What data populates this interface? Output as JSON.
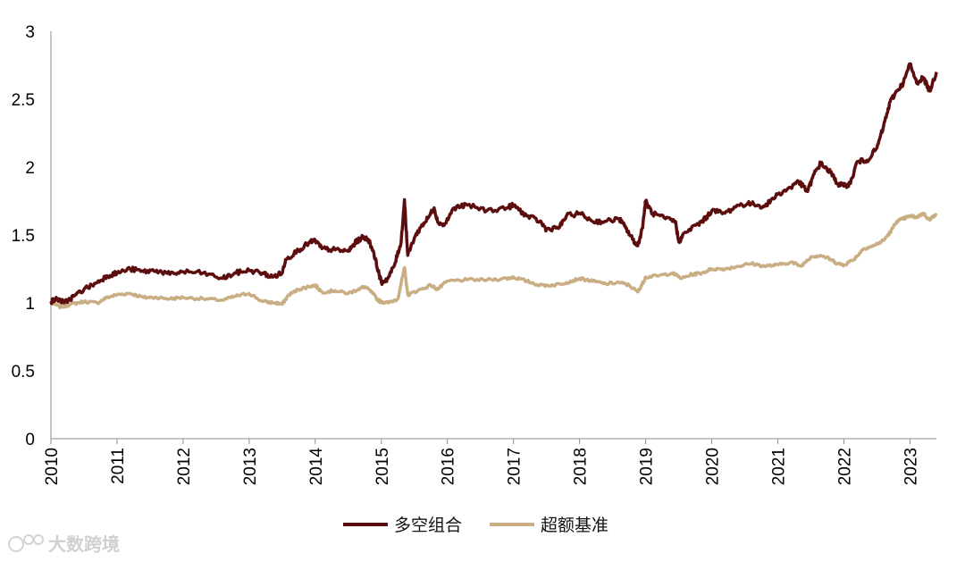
{
  "chart_data": {
    "type": "line",
    "y_ticks": [
      "0",
      "0.5",
      "1",
      "1.5",
      "2",
      "2.5",
      "3"
    ],
    "ylim": [
      0,
      3
    ],
    "x_ticks": [
      "2010",
      "2011",
      "2012",
      "2013",
      "2014",
      "2015",
      "2016",
      "2017",
      "2018",
      "2019",
      "2020",
      "2021",
      "2022",
      "2023"
    ],
    "xlim": [
      2010.0,
      2023.4
    ],
    "grid": false,
    "legend_position": "bottom",
    "series": [
      {
        "name": "多空组合",
        "color": "#5c0d0d",
        "points": [
          [
            2010.0,
            1.01
          ],
          [
            2010.1,
            1.03
          ],
          [
            2010.2,
            1.0
          ],
          [
            2010.35,
            1.05
          ],
          [
            2010.5,
            1.1
          ],
          [
            2010.7,
            1.15
          ],
          [
            2010.85,
            1.2
          ],
          [
            2011.0,
            1.22
          ],
          [
            2011.2,
            1.25
          ],
          [
            2011.4,
            1.23
          ],
          [
            2011.6,
            1.24
          ],
          [
            2011.8,
            1.21
          ],
          [
            2012.0,
            1.23
          ],
          [
            2012.3,
            1.22
          ],
          [
            2012.6,
            1.18
          ],
          [
            2012.8,
            1.22
          ],
          [
            2013.0,
            1.24
          ],
          [
            2013.2,
            1.22
          ],
          [
            2013.35,
            1.19
          ],
          [
            2013.5,
            1.22
          ],
          [
            2013.55,
            1.32
          ],
          [
            2013.75,
            1.39
          ],
          [
            2013.9,
            1.44
          ],
          [
            2014.0,
            1.46
          ],
          [
            2014.1,
            1.4
          ],
          [
            2014.3,
            1.39
          ],
          [
            2014.5,
            1.38
          ],
          [
            2014.6,
            1.44
          ],
          [
            2014.7,
            1.48
          ],
          [
            2014.8,
            1.47
          ],
          [
            2014.88,
            1.38
          ],
          [
            2014.95,
            1.24
          ],
          [
            2015.0,
            1.15
          ],
          [
            2015.1,
            1.18
          ],
          [
            2015.2,
            1.28
          ],
          [
            2015.3,
            1.45
          ],
          [
            2015.35,
            1.76
          ],
          [
            2015.4,
            1.35
          ],
          [
            2015.5,
            1.48
          ],
          [
            2015.6,
            1.56
          ],
          [
            2015.7,
            1.62
          ],
          [
            2015.8,
            1.7
          ],
          [
            2015.85,
            1.6
          ],
          [
            2015.95,
            1.57
          ],
          [
            2016.1,
            1.7
          ],
          [
            2016.3,
            1.72
          ],
          [
            2016.6,
            1.68
          ],
          [
            2016.9,
            1.7
          ],
          [
            2017.0,
            1.72
          ],
          [
            2017.2,
            1.64
          ],
          [
            2017.4,
            1.6
          ],
          [
            2017.5,
            1.54
          ],
          [
            2017.7,
            1.56
          ],
          [
            2017.8,
            1.64
          ],
          [
            2018.0,
            1.66
          ],
          [
            2018.2,
            1.6
          ],
          [
            2018.4,
            1.6
          ],
          [
            2018.6,
            1.62
          ],
          [
            2018.7,
            1.55
          ],
          [
            2018.8,
            1.47
          ],
          [
            2018.88,
            1.42
          ],
          [
            2018.95,
            1.55
          ],
          [
            2019.0,
            1.75
          ],
          [
            2019.1,
            1.66
          ],
          [
            2019.3,
            1.62
          ],
          [
            2019.45,
            1.6
          ],
          [
            2019.5,
            1.45
          ],
          [
            2019.6,
            1.52
          ],
          [
            2019.8,
            1.58
          ],
          [
            2019.9,
            1.62
          ],
          [
            2020.0,
            1.68
          ],
          [
            2020.2,
            1.66
          ],
          [
            2020.4,
            1.72
          ],
          [
            2020.6,
            1.73
          ],
          [
            2020.8,
            1.71
          ],
          [
            2021.0,
            1.8
          ],
          [
            2021.2,
            1.85
          ],
          [
            2021.3,
            1.9
          ],
          [
            2021.45,
            1.82
          ],
          [
            2021.55,
            1.95
          ],
          [
            2021.65,
            2.03
          ],
          [
            2021.8,
            1.96
          ],
          [
            2021.9,
            1.88
          ],
          [
            2022.0,
            1.86
          ],
          [
            2022.1,
            1.88
          ],
          [
            2022.2,
            2.04
          ],
          [
            2022.35,
            2.05
          ],
          [
            2022.5,
            2.14
          ],
          [
            2022.6,
            2.3
          ],
          [
            2022.7,
            2.48
          ],
          [
            2022.8,
            2.56
          ],
          [
            2022.9,
            2.62
          ],
          [
            2023.0,
            2.76
          ],
          [
            2023.1,
            2.62
          ],
          [
            2023.2,
            2.66
          ],
          [
            2023.3,
            2.56
          ],
          [
            2023.4,
            2.7
          ]
        ]
      },
      {
        "name": "超额基准",
        "color": "#c9ae84",
        "points": [
          [
            2010.0,
            1.0
          ],
          [
            2010.15,
            0.97
          ],
          [
            2010.3,
            0.99
          ],
          [
            2010.5,
            1.01
          ],
          [
            2010.7,
            1.0
          ],
          [
            2010.85,
            1.04
          ],
          [
            2011.0,
            1.06
          ],
          [
            2011.2,
            1.07
          ],
          [
            2011.4,
            1.04
          ],
          [
            2011.6,
            1.04
          ],
          [
            2011.8,
            1.03
          ],
          [
            2012.0,
            1.04
          ],
          [
            2012.3,
            1.03
          ],
          [
            2012.6,
            1.02
          ],
          [
            2012.8,
            1.05
          ],
          [
            2013.0,
            1.07
          ],
          [
            2013.2,
            1.01
          ],
          [
            2013.4,
            1.0
          ],
          [
            2013.5,
            0.99
          ],
          [
            2013.6,
            1.06
          ],
          [
            2013.75,
            1.1
          ],
          [
            2013.9,
            1.12
          ],
          [
            2014.0,
            1.13
          ],
          [
            2014.1,
            1.08
          ],
          [
            2014.3,
            1.09
          ],
          [
            2014.5,
            1.07
          ],
          [
            2014.65,
            1.1
          ],
          [
            2014.75,
            1.12
          ],
          [
            2014.85,
            1.08
          ],
          [
            2014.95,
            1.02
          ],
          [
            2015.0,
            1.01
          ],
          [
            2015.1,
            1.0
          ],
          [
            2015.25,
            1.03
          ],
          [
            2015.35,
            1.26
          ],
          [
            2015.4,
            1.06
          ],
          [
            2015.55,
            1.09
          ],
          [
            2015.75,
            1.13
          ],
          [
            2015.85,
            1.1
          ],
          [
            2016.0,
            1.16
          ],
          [
            2016.3,
            1.17
          ],
          [
            2016.6,
            1.17
          ],
          [
            2016.9,
            1.18
          ],
          [
            2017.0,
            1.19
          ],
          [
            2017.2,
            1.16
          ],
          [
            2017.4,
            1.13
          ],
          [
            2017.6,
            1.13
          ],
          [
            2017.8,
            1.15
          ],
          [
            2018.0,
            1.18
          ],
          [
            2018.2,
            1.16
          ],
          [
            2018.4,
            1.14
          ],
          [
            2018.6,
            1.15
          ],
          [
            2018.75,
            1.13
          ],
          [
            2018.88,
            1.08
          ],
          [
            2018.95,
            1.14
          ],
          [
            2019.0,
            1.19
          ],
          [
            2019.2,
            1.2
          ],
          [
            2019.4,
            1.22
          ],
          [
            2019.55,
            1.18
          ],
          [
            2019.7,
            1.21
          ],
          [
            2019.85,
            1.22
          ],
          [
            2020.0,
            1.25
          ],
          [
            2020.2,
            1.25
          ],
          [
            2020.4,
            1.27
          ],
          [
            2020.6,
            1.29
          ],
          [
            2020.8,
            1.27
          ],
          [
            2021.0,
            1.28
          ],
          [
            2021.2,
            1.3
          ],
          [
            2021.35,
            1.27
          ],
          [
            2021.5,
            1.34
          ],
          [
            2021.65,
            1.35
          ],
          [
            2021.8,
            1.32
          ],
          [
            2021.9,
            1.29
          ],
          [
            2022.0,
            1.28
          ],
          [
            2022.15,
            1.32
          ],
          [
            2022.3,
            1.4
          ],
          [
            2022.45,
            1.42
          ],
          [
            2022.6,
            1.46
          ],
          [
            2022.7,
            1.52
          ],
          [
            2022.8,
            1.6
          ],
          [
            2022.9,
            1.62
          ],
          [
            2023.0,
            1.64
          ],
          [
            2023.1,
            1.63
          ],
          [
            2023.2,
            1.66
          ],
          [
            2023.3,
            1.61
          ],
          [
            2023.4,
            1.66
          ]
        ]
      }
    ]
  },
  "watermark": {
    "text": "大数跨境"
  }
}
